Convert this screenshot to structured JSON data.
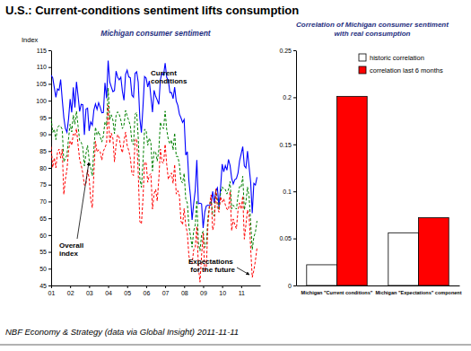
{
  "title": "U.S.: Current-conditions sentiment lifts consumption",
  "source": "NBF Economy & Strategy (data via Global Insight) 2011-11-11",
  "chart_data": [
    {
      "type": "line",
      "title": "Michigan consumer sentiment",
      "y_label": "Index",
      "x": [
        2001,
        2001.083,
        2001.167,
        2001.25,
        2001.333,
        2001.417,
        2001.5,
        2001.583,
        2001.667,
        2001.75,
        2001.833,
        2001.917,
        2002,
        2002.083,
        2002.167,
        2002.25,
        2002.333,
        2002.417,
        2002.5,
        2002.583,
        2002.667,
        2002.75,
        2002.833,
        2002.917,
        2003,
        2003.083,
        2003.167,
        2003.25,
        2003.333,
        2003.417,
        2003.5,
        2003.583,
        2003.667,
        2003.75,
        2003.833,
        2003.917,
        2004,
        2004.083,
        2004.167,
        2004.25,
        2004.333,
        2004.417,
        2004.5,
        2004.583,
        2004.667,
        2004.75,
        2004.833,
        2004.917,
        2005,
        2005.083,
        2005.167,
        2005.25,
        2005.333,
        2005.417,
        2005.5,
        2005.583,
        2005.667,
        2005.75,
        2005.833,
        2005.917,
        2006,
        2006.083,
        2006.167,
        2006.25,
        2006.333,
        2006.417,
        2006.5,
        2006.583,
        2006.667,
        2006.75,
        2006.833,
        2006.917,
        2007,
        2007.083,
        2007.167,
        2007.25,
        2007.333,
        2007.417,
        2007.5,
        2007.583,
        2007.667,
        2007.75,
        2007.833,
        2007.917,
        2008,
        2008.083,
        2008.167,
        2008.25,
        2008.333,
        2008.417,
        2008.5,
        2008.583,
        2008.667,
        2008.75,
        2008.833,
        2008.917,
        2009,
        2009.083,
        2009.167,
        2009.25,
        2009.333,
        2009.417,
        2009.5,
        2009.583,
        2009.667,
        2009.75,
        2009.833,
        2009.917,
        2010,
        2010.083,
        2010.167,
        2010.25,
        2010.333,
        2010.417,
        2010.5,
        2010.583,
        2010.667,
        2010.75,
        2010.833,
        2010.917,
        2011,
        2011.083,
        2011.167,
        2011.25,
        2011.333,
        2011.417,
        2011.5,
        2011.583,
        2011.667,
        2011.75,
        2011.833
      ],
      "xlim": [
        2001,
        2012
      ],
      "xticks": [
        {
          "value": 2001,
          "label": "01"
        },
        {
          "value": 2002,
          "label": "02"
        },
        {
          "value": 2003,
          "label": "03"
        },
        {
          "value": 2004,
          "label": "04"
        },
        {
          "value": 2005,
          "label": "05"
        },
        {
          "value": 2006,
          "label": "06"
        },
        {
          "value": 2007,
          "label": "07"
        },
        {
          "value": 2008,
          "label": "08"
        },
        {
          "value": 2009,
          "label": "09"
        },
        {
          "value": 2010,
          "label": "10"
        },
        {
          "value": 2011,
          "label": "11"
        }
      ],
      "ylim": [
        45,
        115
      ],
      "yticks": [
        45,
        50,
        55,
        60,
        65,
        70,
        75,
        80,
        85,
        90,
        95,
        100,
        105,
        110,
        115
      ],
      "series": [
        {
          "name": "Current conditions",
          "color": "#0000ff",
          "line_style": "solid",
          "values": [
            107.6,
            106.8,
            103.9,
            101.0,
            103.5,
            103.1,
            106.3,
            100.4,
            95.0,
            91.7,
            90.6,
            94.6,
            100.5,
            96.5,
            104.0,
            98.0,
            105.6,
            101.4,
            96.8,
            98.9,
            98.8,
            89.8,
            97.5,
            97.8,
            91.0,
            93.7,
            92.7,
            97.2,
            99.0,
            97.4,
            99.4,
            98.0,
            96.4,
            96.5,
            105.3,
            100.7,
            111.9,
            105.6,
            104.1,
            102.7,
            103.0,
            108.8,
            107.0,
            106.2,
            107.0,
            102.8,
            100.1,
            107.8,
            109.1,
            107.1,
            106.8,
            101.6,
            101.0,
            108.1,
            108.6,
            105.5,
            94.8,
            90.5,
            98.2,
            107.2,
            106.7,
            104.1,
            105.9,
            101.1,
            96.6,
            103.1,
            101.3,
            100.2,
            98.9,
            106.3,
            108.2,
            107.6,
            111.2,
            106.9,
            106.0,
            102.4,
            102.4,
            100.6,
            104.0,
            99.9,
            98.6,
            96.0,
            94.9,
            93.5,
            94.4,
            83.8,
            84.8,
            76.1,
            71.6,
            64.5,
            69.3,
            73.3,
            82.3,
            69.3,
            69.5,
            69.3,
            62.1,
            66.8,
            68.7,
            68.9,
            68.8,
            69.0,
            73.0,
            69.6,
            73.2,
            74.1,
            68.3,
            74.2,
            81.1,
            78.8,
            80.7,
            79.3,
            82.5,
            80.7,
            76.9,
            75.2,
            76.5,
            76.8,
            78.4,
            82.1,
            84.2,
            86.3,
            80.6,
            80.0,
            85.0,
            80.3,
            75.7,
            66.5,
            75.4,
            74.9,
            77.2
          ]
        },
        {
          "name": "Overall index",
          "color": "#008000",
          "line_style": "dashed",
          "values": [
            94.7,
            90.6,
            91.5,
            88.4,
            92.0,
            92.6,
            92.4,
            91.5,
            81.8,
            82.7,
            83.9,
            88.8,
            93.0,
            90.7,
            95.7,
            93.0,
            96.9,
            92.4,
            88.1,
            87.6,
            86.1,
            80.6,
            84.2,
            86.7,
            82.4,
            79.9,
            77.6,
            86.0,
            92.1,
            89.7,
            90.9,
            89.3,
            87.7,
            89.6,
            93.7,
            92.6,
            103.8,
            94.4,
            95.8,
            94.2,
            90.2,
            95.6,
            96.7,
            95.9,
            94.2,
            91.7,
            92.8,
            97.1,
            95.5,
            94.1,
            92.6,
            87.7,
            86.9,
            96.0,
            96.5,
            89.1,
            76.9,
            74.2,
            81.6,
            91.5,
            91.2,
            86.7,
            88.9,
            87.4,
            79.1,
            84.9,
            84.7,
            82.0,
            85.4,
            93.6,
            92.1,
            91.7,
            96.9,
            91.3,
            88.4,
            87.1,
            88.3,
            85.3,
            90.4,
            83.4,
            83.4,
            80.9,
            76.1,
            75.5,
            78.4,
            70.8,
            69.5,
            62.6,
            59.8,
            56.4,
            61.2,
            63.0,
            70.3,
            57.6,
            55.3,
            60.1,
            61.2,
            56.3,
            57.3,
            65.1,
            68.7,
            70.8,
            66.0,
            65.7,
            73.5,
            70.6,
            67.4,
            72.5,
            74.4,
            73.6,
            73.6,
            72.2,
            73.6,
            76.0,
            67.8,
            68.9,
            68.2,
            67.7,
            71.6,
            74.5,
            74.2,
            77.5,
            67.5,
            69.8,
            74.3,
            71.5,
            63.7,
            55.7,
            59.4,
            60.9,
            64.2
          ]
        },
        {
          "name": "Expectations for the future",
          "color": "#ff0000",
          "line_style": "dashed",
          "values": [
            86.3,
            80.1,
            83.0,
            80.0,
            84.6,
            85.6,
            82.9,
            85.6,
            72.1,
            76.6,
            79.5,
            85.2,
            88.1,
            86.7,
            90.1,
            89.5,
            91.7,
            86.8,
            82.5,
            80.8,
            78.4,
            74.8,
            75.1,
            79.4,
            76.8,
            70.7,
            68.1,
            78.7,
            87.9,
            84.7,
            85.4,
            84.8,
            82.3,
            85.0,
            86.0,
            87.3,
            98.6,
            87.3,
            90.3,
            88.8,
            81.8,
            86.8,
            89.9,
            89.0,
            86.0,
            84.5,
            88.0,
            90.6,
            86.7,
            85.2,
            83.0,
            78.4,
            77.7,
            88.3,
            88.7,
            78.6,
            64.0,
            63.3,
            70.8,
            81.7,
            81.5,
            75.7,
            77.8,
            78.3,
            67.7,
            72.3,
            73.6,
            70.1,
            76.7,
            85.6,
            81.7,
            81.4,
            87.0,
            81.0,
            76.6,
            77.6,
            78.5,
            75.4,
            81.0,
            72.2,
            73.2,
            71.7,
            64.1,
            63.1,
            67.9,
            62.9,
            60.6,
            53.8,
            51.7,
            51.4,
            55.6,
            56.4,
            62.6,
            50.6,
            46.0,
            54.0,
            60.6,
            49.0,
            50.5,
            62.8,
            68.7,
            72.0,
            61.5,
            63.1,
            73.7,
            68.1,
            66.8,
            71.4,
            69.8,
            70.8,
            69.0,
            67.7,
            67.5,
            73.0,
            61.3,
            64.8,
            63.0,
            61.9,
            67.3,
            69.6,
            67.7,
            71.6,
            58.8,
            63.0,
            67.5,
            65.9,
            56.0,
            47.4,
            49.5,
            52.4,
            56.2
          ]
        }
      ]
    },
    {
      "type": "bar",
      "title": [
        "Correlation of Michigan consumer sentiment",
        "with real consumption"
      ],
      "categories": [
        "Michigan \"Current conditions\"",
        "Michigan \"Expectations\" component"
      ],
      "ylim": [
        0,
        0.25
      ],
      "yticks": [
        0,
        0.05,
        0.1,
        0.15,
        0.2,
        0.25
      ],
      "legend": "top-right",
      "series": [
        {
          "name": "historic correlation",
          "color": "#ffffff",
          "values": [
            0.022,
            0.056
          ]
        },
        {
          "name": "correlation last 6 months",
          "color": "#ff0000",
          "values": [
            0.201,
            0.072
          ]
        }
      ]
    }
  ]
}
